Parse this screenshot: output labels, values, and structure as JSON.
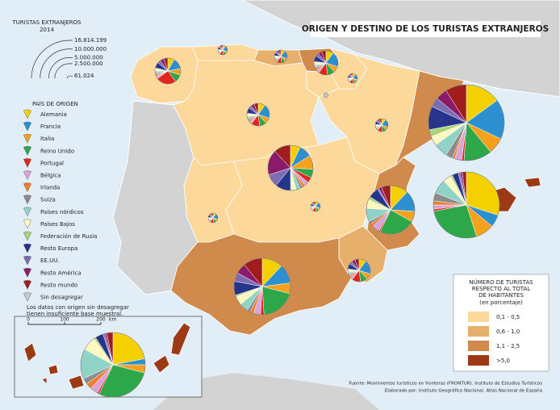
{
  "header": {
    "title": "ORIGEN Y DESTINO DE LOS TURISTAS EXTRANJEROS"
  },
  "size_legend": {
    "title": [
      "TURISTAS EXTRANJEROS",
      "2014"
    ],
    "ticks": [
      {
        "value": 16814199,
        "label": "16.814.199"
      },
      {
        "value": 10000000,
        "label": "10.000.000"
      },
      {
        "value": 5000000,
        "label": "5.000.000"
      },
      {
        "value": 2500000,
        "label": "2.500.000"
      },
      {
        "value": 61024,
        "label": "61.024"
      }
    ]
  },
  "origin_legend": {
    "title": "PAÍS DE ORIGEN",
    "items": [
      {
        "name": "Alemania",
        "color": "#f5d000"
      },
      {
        "name": "Francia",
        "color": "#2b8fd0"
      },
      {
        "name": "Italia",
        "color": "#f4a21e"
      },
      {
        "name": "Reino Unido",
        "color": "#2ea64a"
      },
      {
        "name": "Portugal",
        "color": "#e2261c"
      },
      {
        "name": "Bélgica",
        "color": "#d9a3d8"
      },
      {
        "name": "Irlanda",
        "color": "#ef7d2a"
      },
      {
        "name": "Suiza",
        "color": "#8c8c8c"
      },
      {
        "name": "Países nórdicos",
        "color": "#8fd2c6"
      },
      {
        "name": "Países Bajos",
        "color": "#fff8bf"
      },
      {
        "name": "Federación de Rusia",
        "color": "#aad37a"
      },
      {
        "name": "Resto Europa",
        "color": "#27348b"
      },
      {
        "name": "EE.UU.",
        "color": "#7d6bb3"
      },
      {
        "name": "Resto América",
        "color": "#8b1a6b"
      },
      {
        "name": "Resto mundo",
        "color": "#a11d1d"
      },
      {
        "name": "Sin desagregar",
        "color": "#c9c9c9"
      }
    ],
    "note": [
      "Los datos con origen sin desagregar",
      "tienen insuficiente base muestral."
    ]
  },
  "scale_bar": {
    "ticks": [
      0,
      100,
      200
    ],
    "unit": "km"
  },
  "choropleth_legend": {
    "title": [
      "NÚMERO DE TURISTAS",
      "RESPECTO AL TOTAL",
      "DE HABITANTES"
    ],
    "subtitle": "(en porcentaje)",
    "classes": [
      {
        "label": "0,1 - 0,5",
        "color": "#fcd89a"
      },
      {
        "label": "0,6 - 1,0",
        "color": "#e6b06c"
      },
      {
        "label": "1,1 - 2,5",
        "color": "#d08a4c"
      },
      {
        "label": ">5,0",
        "color": "#9b3a14"
      }
    ]
  },
  "regions": [
    {
      "class": 0
    },
    {
      "class": 0
    },
    {
      "class": 1
    },
    {
      "class": 2
    },
    {
      "class": 0
    },
    {
      "class": 0
    },
    {
      "class": 0
    },
    {
      "class": 0
    },
    {
      "class": 2
    },
    {
      "class": 0
    },
    {
      "class": 0
    },
    {
      "class": 0
    },
    {
      "class": 2
    },
    {
      "class": 1
    },
    {
      "class": 2
    },
    {
      "class": 3
    },
    {
      "class": 3
    }
  ],
  "pies": [
    {
      "total": 1950000,
      "values": [
        8,
        14,
        8,
        10,
        25,
        3,
        2,
        2,
        3,
        3,
        1,
        7,
        4,
        5,
        5,
        0
      ]
    },
    {
      "total": 270000,
      "values": [
        10,
        20,
        8,
        10,
        12,
        4,
        3,
        2,
        3,
        4,
        1,
        8,
        4,
        5,
        6,
        0
      ]
    },
    {
      "total": 490000,
      "values": [
        10,
        20,
        8,
        10,
        12,
        4,
        3,
        2,
        3,
        4,
        1,
        8,
        4,
        5,
        6,
        0
      ]
    },
    {
      "total": 1700000,
      "values": [
        10,
        20,
        8,
        10,
        12,
        4,
        3,
        2,
        3,
        4,
        1,
        8,
        4,
        5,
        6,
        0
      ]
    },
    {
      "total": 270000,
      "values": [
        10,
        20,
        8,
        10,
        12,
        4,
        3,
        2,
        3,
        4,
        1,
        8,
        4,
        5,
        6,
        0
      ]
    },
    {
      "total": 61024,
      "values": [
        0,
        0,
        0,
        0,
        0,
        0,
        0,
        0,
        0,
        0,
        0,
        0,
        0,
        0,
        0,
        100
      ]
    },
    {
      "total": 1500000,
      "values": [
        10,
        20,
        8,
        10,
        12,
        4,
        3,
        2,
        3,
        4,
        1,
        8,
        4,
        5,
        6,
        0
      ]
    },
    {
      "total": 490000,
      "values": [
        10,
        20,
        8,
        10,
        12,
        4,
        3,
        2,
        3,
        4,
        1,
        8,
        4,
        5,
        6,
        0
      ]
    },
    {
      "total": 16814199,
      "values": [
        15,
        17,
        7,
        12,
        1,
        3,
        1,
        3,
        6,
        4,
        3,
        10,
        4,
        5,
        9,
        0
      ]
    },
    {
      "total": 6000000,
      "values": [
        7,
        9,
        10,
        6,
        4,
        3,
        2,
        2,
        3,
        3,
        1,
        11,
        9,
        18,
        12,
        0
      ]
    },
    {
      "total": 6900000,
      "values": [
        12,
        14,
        7,
        24,
        1,
        5,
        2,
        2,
        9,
        6,
        2,
        7,
        1,
        2,
        6,
        0
      ]
    },
    {
      "total": 12800000,
      "values": [
        30,
        6,
        9,
        27,
        1,
        2,
        2,
        4,
        7,
        4,
        1,
        3,
        1,
        1,
        2,
        0
      ]
    },
    {
      "total": 270000,
      "values": [
        10,
        20,
        8,
        10,
        12,
        4,
        3,
        2,
        3,
        4,
        1,
        8,
        4,
        5,
        6,
        0
      ]
    },
    {
      "total": 270000,
      "values": [
        10,
        20,
        8,
        10,
        12,
        4,
        3,
        2,
        3,
        4,
        1,
        8,
        4,
        5,
        6,
        0
      ]
    },
    {
      "total": 9300000,
      "values": [
        12,
        11,
        6,
        20,
        2,
        4,
        2,
        2,
        5,
        5,
        1,
        8,
        5,
        6,
        11,
        0
      ]
    },
    {
      "total": 1500000,
      "values": [
        10,
        20,
        8,
        10,
        12,
        4,
        3,
        2,
        3,
        4,
        1,
        8,
        4,
        5,
        6,
        0
      ]
    },
    {
      "total": 12200000,
      "values": [
        22,
        3,
        4,
        28,
        1,
        4,
        3,
        3,
        15,
        7,
        1,
        4,
        1,
        1,
        3,
        0
      ]
    }
  ],
  "source": [
    "Fuente: Movimientos turísticos en fronteras (FRONTUR). Instituto de Estudios Turísticos",
    "Elaborado por: Instituto Geográfico Nacional. Atlas Nacional de España"
  ]
}
